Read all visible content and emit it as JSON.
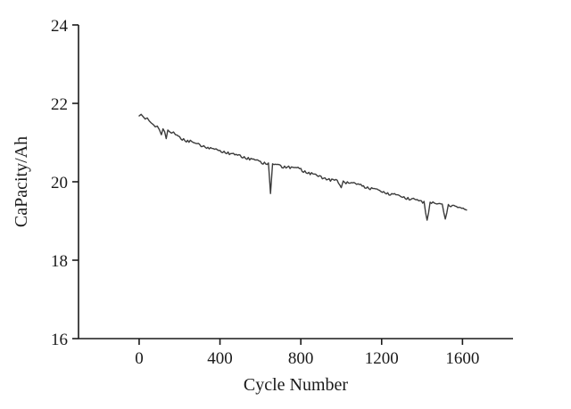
{
  "chart_data": {
    "type": "line",
    "title": "",
    "xlabel": "Cycle Number",
    "ylabel": "CaPacity/Ah",
    "xlim": [
      -300,
      1850
    ],
    "ylim": [
      16,
      24
    ],
    "xticks": [
      0,
      400,
      800,
      1200,
      1600
    ],
    "yticks": [
      16,
      18,
      20,
      22,
      24
    ],
    "grid": false,
    "legend": "none",
    "line_color": "#3b3b3b",
    "axis_color": "#1a1a1a",
    "series": [
      {
        "name": "capacity",
        "points": [
          [
            0,
            21.68
          ],
          [
            10,
            21.72
          ],
          [
            20,
            21.66
          ],
          [
            30,
            21.6
          ],
          [
            40,
            21.63
          ],
          [
            50,
            21.55
          ],
          [
            60,
            21.5
          ],
          [
            70,
            21.46
          ],
          [
            80,
            21.4
          ],
          [
            90,
            21.42
          ],
          [
            100,
            21.33
          ],
          [
            110,
            21.2
          ],
          [
            118,
            21.35
          ],
          [
            126,
            21.28
          ],
          [
            134,
            21.1
          ],
          [
            142,
            21.32
          ],
          [
            150,
            21.28
          ],
          [
            160,
            21.24
          ],
          [
            170,
            21.27
          ],
          [
            180,
            21.2
          ],
          [
            200,
            21.15
          ],
          [
            220,
            21.1
          ],
          [
            240,
            21.06
          ],
          [
            260,
            21.03
          ],
          [
            280,
            20.98
          ],
          [
            300,
            20.95
          ],
          [
            320,
            20.92
          ],
          [
            340,
            20.88
          ],
          [
            360,
            20.85
          ],
          [
            380,
            20.84
          ],
          [
            400,
            20.8
          ],
          [
            420,
            20.78
          ],
          [
            440,
            20.76
          ],
          [
            460,
            20.72
          ],
          [
            480,
            20.7
          ],
          [
            500,
            20.68
          ],
          [
            520,
            20.64
          ],
          [
            540,
            20.62
          ],
          [
            560,
            20.58
          ],
          [
            580,
            20.56
          ],
          [
            600,
            20.52
          ],
          [
            620,
            20.5
          ],
          [
            640,
            20.48
          ],
          [
            650,
            19.7
          ],
          [
            660,
            20.46
          ],
          [
            680,
            20.44
          ],
          [
            700,
            20.42
          ],
          [
            720,
            20.4
          ],
          [
            740,
            20.4
          ],
          [
            760,
            20.37
          ],
          [
            780,
            20.36
          ],
          [
            800,
            20.34
          ],
          [
            820,
            20.28
          ],
          [
            840,
            20.24
          ],
          [
            860,
            20.2
          ],
          [
            880,
            20.16
          ],
          [
            900,
            20.14
          ],
          [
            920,
            20.1
          ],
          [
            940,
            20.08
          ],
          [
            960,
            20.06
          ],
          [
            980,
            20.04
          ],
          [
            1000,
            19.85
          ],
          [
            1010,
            20.02
          ],
          [
            1030,
            20.0
          ],
          [
            1050,
            19.98
          ],
          [
            1070,
            19.96
          ],
          [
            1090,
            19.93
          ],
          [
            1110,
            19.9
          ],
          [
            1130,
            19.87
          ],
          [
            1150,
            19.85
          ],
          [
            1170,
            19.82
          ],
          [
            1190,
            19.78
          ],
          [
            1210,
            19.75
          ],
          [
            1230,
            19.72
          ],
          [
            1250,
            19.7
          ],
          [
            1270,
            19.67
          ],
          [
            1290,
            19.64
          ],
          [
            1310,
            19.62
          ],
          [
            1330,
            19.6
          ],
          [
            1350,
            19.57
          ],
          [
            1370,
            19.54
          ],
          [
            1390,
            19.52
          ],
          [
            1410,
            19.5
          ],
          [
            1425,
            19.02
          ],
          [
            1440,
            19.48
          ],
          [
            1460,
            19.46
          ],
          [
            1480,
            19.44
          ],
          [
            1500,
            19.43
          ],
          [
            1515,
            19.05
          ],
          [
            1530,
            19.42
          ],
          [
            1550,
            19.4
          ],
          [
            1570,
            19.37
          ],
          [
            1590,
            19.34
          ],
          [
            1610,
            19.3
          ],
          [
            1620,
            19.28
          ]
        ]
      }
    ]
  }
}
